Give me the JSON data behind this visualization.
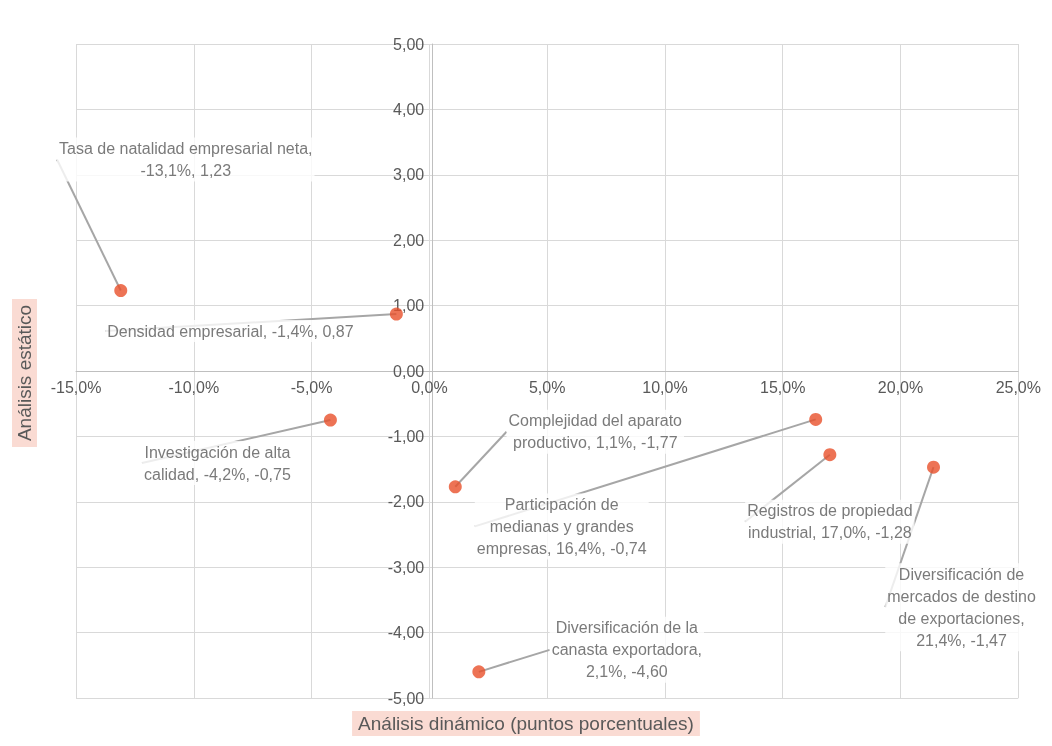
{
  "chart_data": {
    "type": "scatter",
    "xlabel": "Análisis dinámico (puntos porcentuales)",
    "ylabel": "Análisis estático",
    "x": [
      -13.1,
      -1.4,
      -4.2,
      1.1,
      16.4,
      17.0,
      21.4,
      2.1
    ],
    "values": [
      1.23,
      0.87,
      -0.75,
      -1.77,
      -0.74,
      -1.28,
      -1.47,
      -4.6
    ],
    "color": "#e8502a",
    "marker": "circle",
    "grid": true,
    "xlim": [
      -15,
      25
    ],
    "ylim": [
      -5,
      5
    ],
    "xticks": [
      {
        "value": -15,
        "label": "-15,0%"
      },
      {
        "value": -10,
        "label": "-10,0%"
      },
      {
        "value": -5,
        "label": "-5,0%"
      },
      {
        "value": 0,
        "label": "0,0%"
      },
      {
        "value": 5,
        "label": "5,0%"
      },
      {
        "value": 10,
        "label": "10,0%"
      },
      {
        "value": 15,
        "label": "15,0%"
      },
      {
        "value": 20,
        "label": "20,0%"
      },
      {
        "value": 25,
        "label": "25,0%"
      }
    ],
    "yticks": [
      {
        "value": -5,
        "label": "-5,00"
      },
      {
        "value": -4,
        "label": "-4,00"
      },
      {
        "value": -3,
        "label": "-3,00"
      },
      {
        "value": -2,
        "label": "-2,00"
      },
      {
        "value": -1,
        "label": "-1,00"
      },
      {
        "value": 0,
        "label": "0,00"
      },
      {
        "value": 1,
        "label": "1,00"
      },
      {
        "value": 2,
        "label": "2,00"
      },
      {
        "value": 3,
        "label": "3,00"
      },
      {
        "value": 4,
        "label": "4,00"
      },
      {
        "value": 5,
        "label": "5,00"
      }
    ],
    "annotations": [
      {
        "text": "Tasa de natalidad empresarial neta, -13,1%, 1,23",
        "x": -13.1,
        "y": 1.23
      },
      {
        "text": "Densidad empresarial, -1,4%, 0,87",
        "x": -1.4,
        "y": 0.87
      },
      {
        "text": "Investigación de alta calidad, -4,2%, -0,75",
        "x": -4.2,
        "y": -0.75
      },
      {
        "text": "Complejidad del aparato productivo, 1,1%, -1,77",
        "x": 1.1,
        "y": -1.77
      },
      {
        "text": "Participación de medianas y grandes empresas, 16,4%, -0,74",
        "x": 16.4,
        "y": -0.74
      },
      {
        "text": "Registros de propiedad industrial, 17,0%, -1,28",
        "x": 17.0,
        "y": -1.28
      },
      {
        "text": "Diversificación de mercados de destino de exportaciones, 21,4%, -1,47",
        "x": 21.4,
        "y": -1.47
      },
      {
        "text": "Diversificación de la canasta exportadora, 2,1%, -4,60",
        "x": 2.1,
        "y": -4.6
      }
    ]
  }
}
